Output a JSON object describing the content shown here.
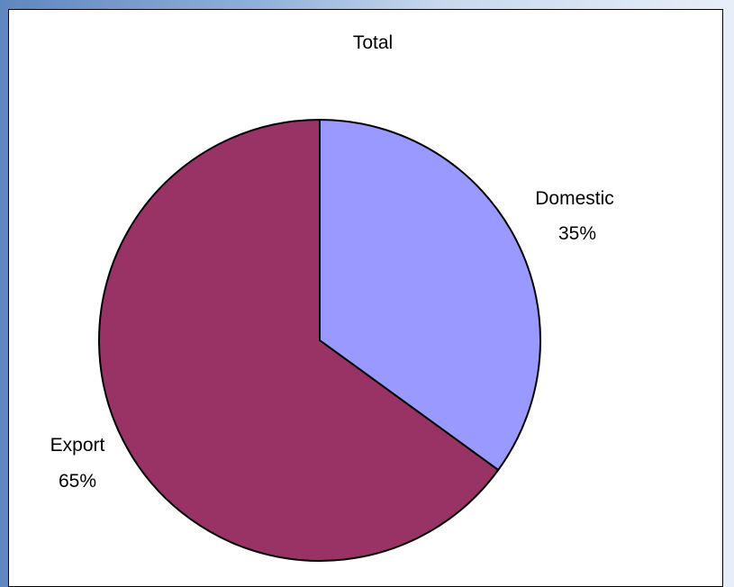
{
  "chart_data": {
    "type": "pie",
    "title": "Total",
    "categories": [
      "Domestic",
      "Export"
    ],
    "values": [
      35,
      65
    ],
    "data_labels": [
      "35%",
      "65%"
    ],
    "colors": [
      "#9999ff",
      "#993366"
    ],
    "start_angle": "12 o'clock",
    "direction": "clockwise",
    "legend": "none"
  }
}
